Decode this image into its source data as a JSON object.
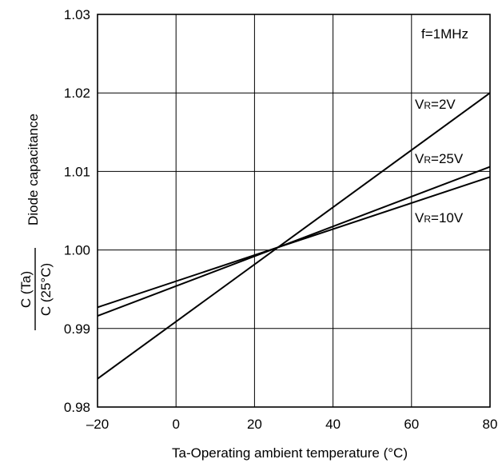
{
  "chart_data": {
    "type": "line",
    "title": "",
    "xlabel": "Ta-Operating ambient temperature (°C)",
    "ylabel": {
      "numerator": "C (Ta)",
      "denominator": "C (25°C)",
      "text": "Diode capacitance"
    },
    "xlim": [
      -20,
      80
    ],
    "ylim": [
      0.98,
      1.03
    ],
    "x_ticks": [
      "–20",
      "0",
      "20",
      "40",
      "60",
      "80"
    ],
    "y_ticks": [
      "0.98",
      "0.99",
      "1.00",
      "1.01",
      "1.02",
      "1.03"
    ],
    "grid": true,
    "annotation": "f=1MHz",
    "series": [
      {
        "name": "VR=2V",
        "label_main": "V",
        "label_sub": "R",
        "label_rest": "=2V",
        "x": [
          -20,
          80
        ],
        "y": [
          0.9836,
          1.02
        ]
      },
      {
        "name": "VR=25V",
        "label_main": "V",
        "label_sub": "R",
        "label_rest": "=25V",
        "x": [
          -20,
          80
        ],
        "y": [
          0.9916,
          1.0106
        ]
      },
      {
        "name": "VR=10V",
        "label_main": "V",
        "label_sub": "R",
        "label_rest": "=10V",
        "x": [
          -20,
          80
        ],
        "y": [
          0.9927,
          1.0093
        ]
      }
    ]
  }
}
